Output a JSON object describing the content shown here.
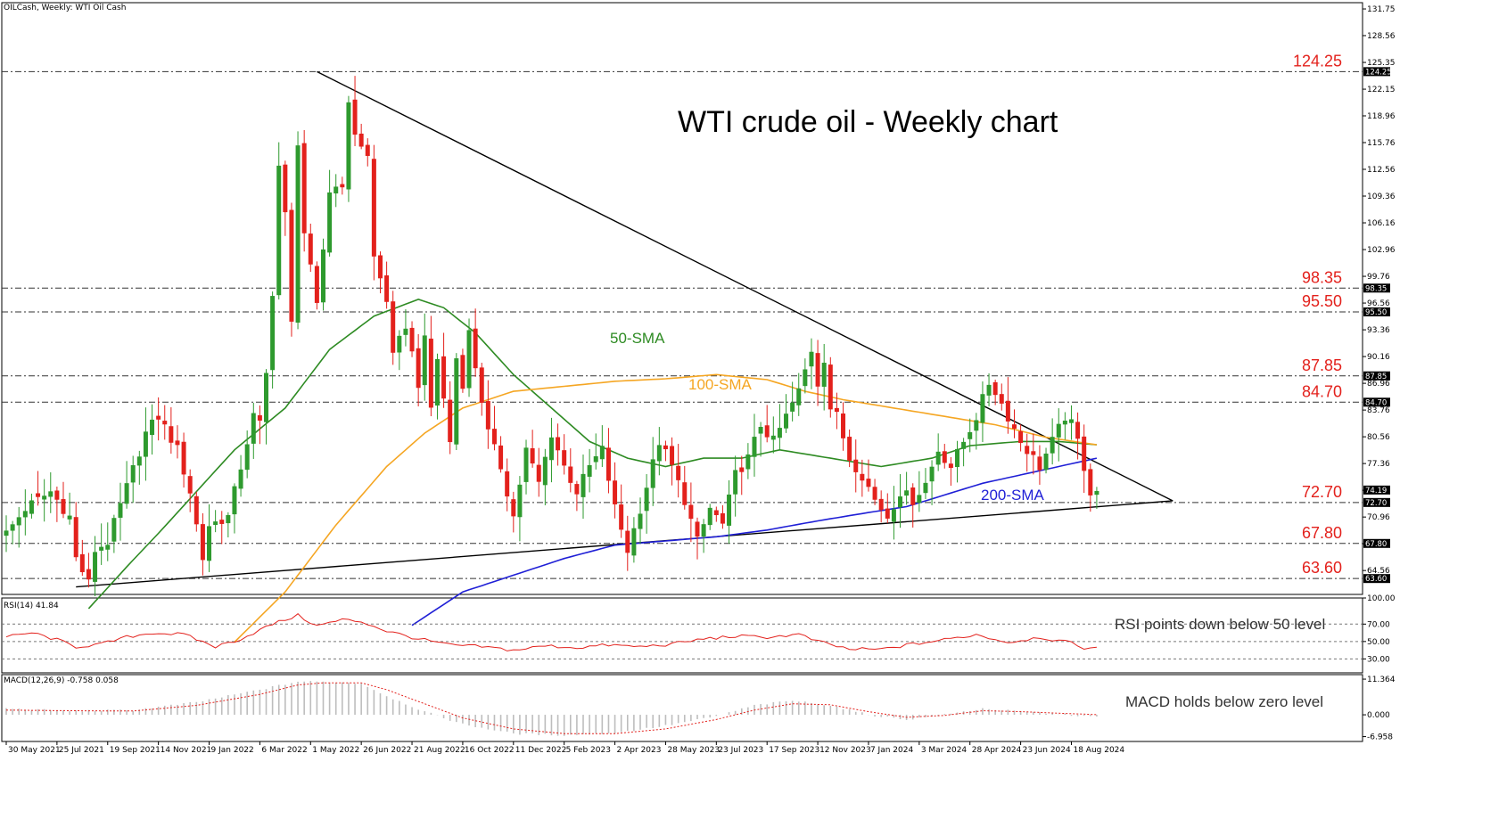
{
  "header": {
    "symbol_line": "OILCash, Weekly:  WTI Oil Cash",
    "rsi_line": "RSI(14) 41.84",
    "macd_line": "MACD(12,26,9) -0.758 0.058"
  },
  "colors": {
    "bull": "#2e9a2e",
    "bear": "#e3211c",
    "sma50": "#2e8b23",
    "sma100": "#f5a623",
    "sma200": "#1f1fd6",
    "level_text": "#e3211c",
    "rsi_line": "#e3211c",
    "macd_signal": "#e3211c",
    "macd_hist": "#bdbdbd",
    "axis_badge": "#000000"
  },
  "chart_data": [
    {
      "type": "candlestick",
      "title": "WTI crude oil - Weekly chart",
      "x_tick_labels": [
        "30 May 2021",
        "25 Jul 2021",
        "19 Sep 2021",
        "14 Nov 2021",
        "9 Jan 2022",
        "6 Mar 2022",
        "1 May 2022",
        "26 Jun 2022",
        "21 Aug 2022",
        "16 Oct 2022",
        "11 Dec 2022",
        "5 Feb 2023",
        "2 Apr 2023",
        "28 May 2023",
        "23 Jul 2023",
        "17 Sep 2023",
        "12 Nov 2023",
        "7 Jan 2024",
        "3 Mar 2024",
        "28 Apr 2024",
        "23 Jun 2024",
        "18 Aug 2024"
      ],
      "y_tick_labels": [
        "131.75",
        "128.56",
        "125.35",
        "122.15",
        "118.96",
        "115.76",
        "112.56",
        "109.36",
        "106.16",
        "102.96",
        "99.76",
        "96.56",
        "93.36",
        "90.16",
        "86.96",
        "83.76",
        "80.56",
        "77.36",
        "74.16",
        "70.96",
        "67.76",
        "64.56"
      ],
      "ylim": [
        61.7,
        132.5
      ],
      "price_badges": [
        "124.25",
        "98.35",
        "95.50",
        "87.85",
        "84.70",
        "74.19",
        "72.70",
        "67.80",
        "63.60"
      ],
      "levels": [
        {
          "label": "124.25",
          "value": 124.25
        },
        {
          "label": "98.35",
          "value": 98.35
        },
        {
          "label": "95.50",
          "value": 95.5
        },
        {
          "label": "87.85",
          "value": 87.85
        },
        {
          "label": "84.70",
          "value": 84.7
        },
        {
          "label": "72.70",
          "value": 72.7
        },
        {
          "label": "67.80",
          "value": 67.8
        },
        {
          "label": "63.60",
          "value": 63.6
        }
      ],
      "annotations": [
        "50-SMA",
        "100-SMA",
        "200-SMA"
      ],
      "close_anchors": [
        [
          0,
          69
        ],
        [
          3,
          72
        ],
        [
          7,
          74
        ],
        [
          10,
          71
        ],
        [
          11,
          66
        ],
        [
          13,
          63
        ],
        [
          14,
          67
        ],
        [
          16,
          68
        ],
        [
          22,
          81
        ],
        [
          24,
          83
        ],
        [
          27,
          79
        ],
        [
          29,
          74
        ],
        [
          31,
          66
        ],
        [
          32,
          70
        ],
        [
          35,
          71
        ],
        [
          39,
          83
        ],
        [
          40,
          82
        ],
        [
          41,
          88
        ],
        [
          42,
          98
        ],
        [
          43,
          113
        ],
        [
          44,
          107
        ],
        [
          45,
          94
        ],
        [
          46,
          116
        ],
        [
          47,
          105
        ],
        [
          49,
          96
        ],
        [
          51,
          110
        ],
        [
          53,
          111
        ],
        [
          54,
          120
        ],
        [
          55,
          117
        ],
        [
          57,
          114
        ],
        [
          58,
          102
        ],
        [
          60,
          97
        ],
        [
          61,
          90
        ],
        [
          63,
          94
        ],
        [
          65,
          87
        ],
        [
          66,
          92
        ],
        [
          67,
          84
        ],
        [
          68,
          90
        ],
        [
          70,
          80
        ],
        [
          71,
          90
        ],
        [
          72,
          87
        ],
        [
          73,
          93
        ],
        [
          75,
          85
        ],
        [
          76,
          81
        ],
        [
          78,
          77
        ],
        [
          80,
          71
        ],
        [
          82,
          79
        ],
        [
          84,
          75
        ],
        [
          86,
          81
        ],
        [
          88,
          77
        ],
        [
          90,
          74
        ],
        [
          92,
          77
        ],
        [
          94,
          79
        ],
        [
          96,
          72
        ],
        [
          98,
          67
        ],
        [
          100,
          72
        ],
        [
          103,
          80
        ],
        [
          105,
          77
        ],
        [
          107,
          73
        ],
        [
          109,
          68
        ],
        [
          111,
          72
        ],
        [
          113,
          70
        ],
        [
          115,
          76
        ],
        [
          117,
          78
        ],
        [
          119,
          82
        ],
        [
          121,
          80
        ],
        [
          123,
          83
        ],
        [
          125,
          86
        ],
        [
          127,
          91
        ],
        [
          128,
          87
        ],
        [
          129,
          90
        ],
        [
          130,
          84
        ],
        [
          131,
          83
        ],
        [
          133,
          78
        ],
        [
          135,
          76
        ],
        [
          137,
          73
        ],
        [
          139,
          71
        ],
        [
          141,
          74
        ],
        [
          143,
          73
        ],
        [
          145,
          75
        ],
        [
          147,
          79
        ],
        [
          149,
          77
        ],
        [
          151,
          80
        ],
        [
          153,
          83
        ],
        [
          155,
          87
        ],
        [
          156,
          86
        ],
        [
          158,
          83
        ],
        [
          160,
          80
        ],
        [
          162,
          78
        ],
        [
          163,
          77
        ],
        [
          165,
          80
        ],
        [
          167,
          83
        ],
        [
          168,
          82
        ],
        [
          169,
          80
        ],
        [
          170,
          77
        ],
        [
          171,
          74
        ],
        [
          172,
          74.19
        ]
      ],
      "ohlc_note": "",
      "series": [
        {
          "name": "50-SMA"
        },
        {
          "name": "100-SMA"
        },
        {
          "name": "200-SMA"
        }
      ],
      "sma50_anchors": [
        [
          13,
          60
        ],
        [
          19,
          65
        ],
        [
          24,
          69
        ],
        [
          30,
          74
        ],
        [
          36,
          79
        ],
        [
          44,
          84
        ],
        [
          51,
          91
        ],
        [
          58,
          95
        ],
        [
          65,
          97
        ],
        [
          69,
          96
        ],
        [
          74,
          93
        ],
        [
          80,
          88
        ],
        [
          86,
          84
        ],
        [
          92,
          80
        ],
        [
          98,
          78
        ],
        [
          104,
          77
        ],
        [
          110,
          78
        ],
        [
          116,
          78
        ],
        [
          122,
          79
        ],
        [
          130,
          78
        ],
        [
          138,
          77
        ],
        [
          146,
          78
        ],
        [
          152,
          79.5
        ],
        [
          160,
          80
        ],
        [
          166,
          80
        ],
        [
          172,
          79.6
        ]
      ],
      "sma100_anchors": [
        [
          36,
          56
        ],
        [
          44,
          62
        ],
        [
          52,
          70
        ],
        [
          60,
          77
        ],
        [
          66,
          81
        ],
        [
          72,
          84
        ],
        [
          80,
          86
        ],
        [
          88,
          86.6
        ],
        [
          96,
          87.2
        ],
        [
          104,
          87.5
        ],
        [
          112,
          88
        ],
        [
          120,
          87.4
        ],
        [
          126,
          86
        ],
        [
          132,
          85
        ],
        [
          140,
          84
        ],
        [
          148,
          83
        ],
        [
          156,
          82
        ],
        [
          164,
          80.5
        ],
        [
          172,
          79.6
        ]
      ],
      "sma200_anchors": [
        [
          64,
          58
        ],
        [
          72,
          62
        ],
        [
          80,
          64
        ],
        [
          88,
          66
        ],
        [
          96,
          67.6
        ],
        [
          104,
          68.1
        ],
        [
          112,
          68.6
        ],
        [
          120,
          69.4
        ],
        [
          128,
          70.5
        ],
        [
          136,
          71.5
        ],
        [
          142,
          72.2
        ],
        [
          148,
          73.6
        ],
        [
          154,
          75
        ],
        [
          160,
          76
        ],
        [
          166,
          77
        ],
        [
          172,
          78
        ]
      ],
      "trendlines": [
        {
          "from": [
            11,
            62.6
          ],
          "to": [
            184,
            72.9
          ]
        },
        {
          "from": [
            49,
            124.25
          ],
          "to": [
            184,
            72.9
          ]
        }
      ]
    },
    {
      "type": "line",
      "title": "RSI(14)",
      "ylim": [
        14,
        100
      ],
      "y_tick_labels": [
        "100.00",
        "70.00",
        "50.00",
        "30.00"
      ],
      "last_value": 41.84,
      "annotation": "RSI points down below 50 level",
      "anchors": [
        [
          0,
          55
        ],
        [
          4,
          60
        ],
        [
          8,
          52
        ],
        [
          11,
          44
        ],
        [
          15,
          47
        ],
        [
          19,
          55
        ],
        [
          23,
          60
        ],
        [
          28,
          58
        ],
        [
          33,
          44
        ],
        [
          37,
          53
        ],
        [
          42,
          70
        ],
        [
          46,
          80
        ],
        [
          49,
          68
        ],
        [
          53,
          75
        ],
        [
          56,
          73
        ],
        [
          60,
          62
        ],
        [
          65,
          53
        ],
        [
          70,
          46
        ],
        [
          75,
          44
        ],
        [
          80,
          40
        ],
        [
          85,
          45
        ],
        [
          90,
          43
        ],
        [
          95,
          46
        ],
        [
          100,
          44
        ],
        [
          105,
          47
        ],
        [
          110,
          53
        ],
        [
          115,
          56
        ],
        [
          120,
          55
        ],
        [
          125,
          58
        ],
        [
          128,
          50
        ],
        [
          133,
          41
        ],
        [
          138,
          41
        ],
        [
          143,
          47
        ],
        [
          148,
          52
        ],
        [
          153,
          58
        ],
        [
          158,
          49
        ],
        [
          163,
          55
        ],
        [
          168,
          48
        ],
        [
          170,
          43
        ],
        [
          172,
          41.84
        ]
      ]
    },
    {
      "type": "bar",
      "title": "MACD(12,26,9)",
      "ylim": [
        -8.5,
        12.8
      ],
      "y_tick_labels": [
        "11.364",
        "0.000",
        "-6.958"
      ],
      "last_values": {
        "macd": -0.758,
        "signal": 0.058
      },
      "annotation": "MACD holds below zero level",
      "macd_anchors": [
        [
          0,
          2
        ],
        [
          10,
          1.2
        ],
        [
          20,
          1.5
        ],
        [
          30,
          4
        ],
        [
          40,
          8
        ],
        [
          46,
          10.6
        ],
        [
          50,
          10.5
        ],
        [
          56,
          10
        ],
        [
          60,
          6
        ],
        [
          66,
          1
        ],
        [
          72,
          -3
        ],
        [
          80,
          -6
        ],
        [
          88,
          -6.5
        ],
        [
          96,
          -5.8
        ],
        [
          104,
          -3.5
        ],
        [
          112,
          -0.5
        ],
        [
          118,
          3
        ],
        [
          124,
          4.5
        ],
        [
          130,
          3
        ],
        [
          136,
          0
        ],
        [
          142,
          -1.5
        ],
        [
          148,
          0
        ],
        [
          154,
          2
        ],
        [
          160,
          1
        ],
        [
          166,
          0.3
        ],
        [
          172,
          -0.758
        ]
      ],
      "signal_anchors": [
        [
          0,
          1.5
        ],
        [
          10,
          1.3
        ],
        [
          20,
          1.2
        ],
        [
          30,
          3
        ],
        [
          40,
          6.5
        ],
        [
          46,
          9.5
        ],
        [
          50,
          10.2
        ],
        [
          56,
          10.2
        ],
        [
          60,
          8
        ],
        [
          66,
          3.5
        ],
        [
          72,
          -1
        ],
        [
          80,
          -4.5
        ],
        [
          88,
          -6
        ],
        [
          96,
          -6
        ],
        [
          104,
          -4.5
        ],
        [
          112,
          -1.5
        ],
        [
          118,
          1.5
        ],
        [
          124,
          3.5
        ],
        [
          130,
          3.2
        ],
        [
          136,
          1
        ],
        [
          142,
          -0.8
        ],
        [
          148,
          -0.2
        ],
        [
          154,
          1.3
        ],
        [
          160,
          1
        ],
        [
          166,
          0.5
        ],
        [
          172,
          0.058
        ]
      ]
    }
  ]
}
